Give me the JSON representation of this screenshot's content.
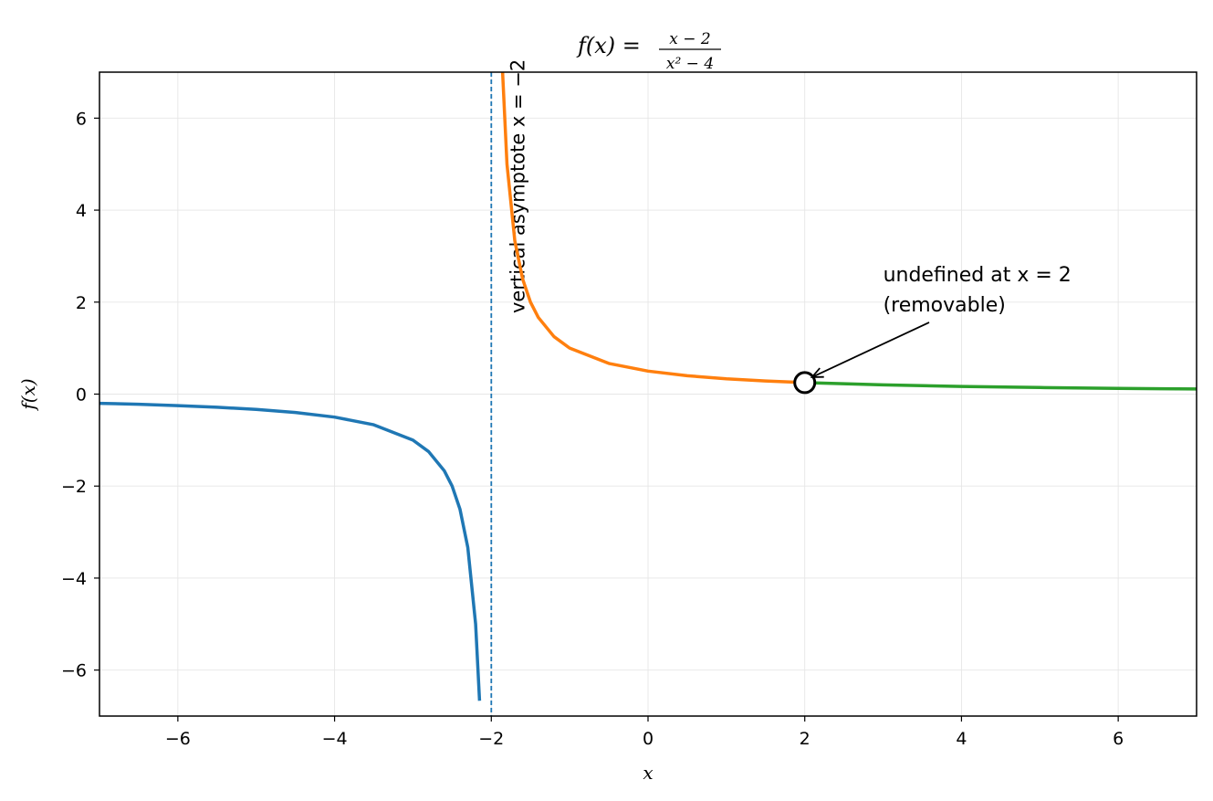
{
  "chart_data": {
    "type": "line",
    "title": {
      "lhs": "f(x) =",
      "numerator": "x − 2",
      "denominator": "x² − 4"
    },
    "xlabel": "x",
    "ylabel": "f(x)",
    "xlim": [
      -7,
      7
    ],
    "ylim": [
      -7,
      7
    ],
    "x_ticks": [
      -6,
      -4,
      -2,
      0,
      2,
      4,
      6
    ],
    "y_ticks": [
      -6,
      -4,
      -2,
      0,
      2,
      4,
      6
    ],
    "x_tick_labels": [
      "−6",
      "−4",
      "−2",
      "0",
      "2",
      "4",
      "6"
    ],
    "y_tick_labels": [
      "−6",
      "−4",
      "−2",
      "0",
      "2",
      "4",
      "6"
    ],
    "grid": true,
    "colors": {
      "left": "#1f77b4",
      "middle": "#ff7f0e",
      "right": "#2ca02c",
      "asymptote": "#1f77b4"
    },
    "series": [
      {
        "x": [
          -7,
          -6.5,
          -6,
          -5.5,
          -5,
          -4.5,
          -4,
          -3.5,
          -3,
          -2.8,
          -2.6,
          -2.5,
          -2.4,
          -2.3,
          -2.2,
          -2.15
        ],
        "y": [
          -0.2,
          -0.222,
          -0.25,
          -0.286,
          -0.333,
          -0.4,
          -0.5,
          -0.667,
          -1.0,
          -1.25,
          -1.667,
          -2.0,
          -2.5,
          -3.333,
          -5.0,
          -6.667
        ]
      },
      {
        "x": [
          -1.86,
          -1.8,
          -1.7,
          -1.6,
          -1.5,
          -1.4,
          -1.2,
          -1.0,
          -0.5,
          0,
          0.5,
          1.0,
          1.5,
          2.0
        ],
        "y": [
          7.14,
          5.0,
          3.333,
          2.5,
          2.0,
          1.667,
          1.25,
          1.0,
          0.667,
          0.5,
          0.4,
          0.333,
          0.286,
          0.25
        ]
      },
      {
        "x": [
          2.0,
          3,
          4,
          5,
          6,
          7
        ],
        "y": [
          0.25,
          0.2,
          0.167,
          0.143,
          0.125,
          0.111
        ]
      }
    ],
    "asymptote": {
      "x": -2,
      "label": "vertical asymptote x = −2"
    },
    "hole": {
      "x": 2,
      "y": 0.25
    },
    "annotation": {
      "lines": [
        "undefined at x = 2",
        "(removable)"
      ],
      "text_x": 3.0,
      "text_y": 2.2
    }
  }
}
